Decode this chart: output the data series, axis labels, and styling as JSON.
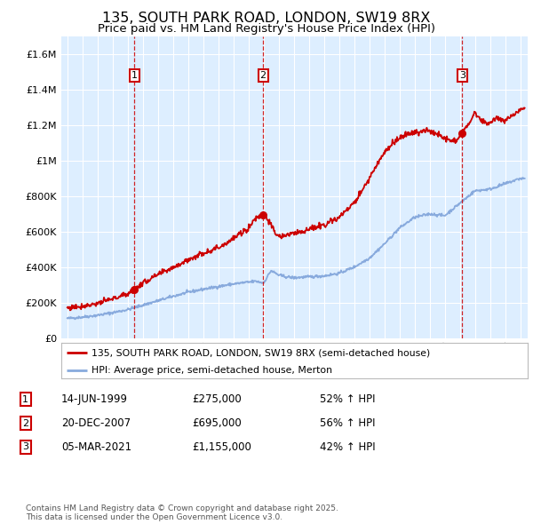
{
  "title": "135, SOUTH PARK ROAD, LONDON, SW19 8RX",
  "subtitle": "Price paid vs. HM Land Registry's House Price Index (HPI)",
  "title_fontsize": 11.5,
  "subtitle_fontsize": 9.5,
  "background_color": "#ffffff",
  "plot_bg_color": "#ddeeff",
  "grid_color": "#ffffff",
  "ylim": [
    0,
    1700000
  ],
  "yticks": [
    0,
    200000,
    400000,
    600000,
    800000,
    1000000,
    1200000,
    1400000,
    1600000
  ],
  "ytick_labels": [
    "£0",
    "£200K",
    "£400K",
    "£600K",
    "£800K",
    "£1M",
    "£1.2M",
    "£1.4M",
    "£1.6M"
  ],
  "xlim_start": 1994.6,
  "xlim_end": 2025.5,
  "xticks": [
    1995,
    1996,
    1997,
    1998,
    1999,
    2000,
    2001,
    2002,
    2003,
    2004,
    2005,
    2006,
    2007,
    2008,
    2009,
    2010,
    2011,
    2012,
    2013,
    2014,
    2015,
    2016,
    2017,
    2018,
    2019,
    2020,
    2021,
    2022,
    2023,
    2024,
    2025
  ],
  "red_line_color": "#cc0000",
  "blue_line_color": "#88aadd",
  "vline_color": "#cc0000",
  "sale_points": [
    {
      "year": 1999.45,
      "value": 275000,
      "label": "1"
    },
    {
      "year": 2007.97,
      "value": 695000,
      "label": "2"
    },
    {
      "year": 2021.17,
      "value": 1155000,
      "label": "3"
    }
  ],
  "legend_red_label": "135, SOUTH PARK ROAD, LONDON, SW19 8RX (semi-detached house)",
  "legend_blue_label": "HPI: Average price, semi-detached house, Merton",
  "table_rows": [
    {
      "num": "1",
      "date": "14-JUN-1999",
      "price": "£275,000",
      "hpi": "52% ↑ HPI"
    },
    {
      "num": "2",
      "date": "20-DEC-2007",
      "price": "£695,000",
      "hpi": "56% ↑ HPI"
    },
    {
      "num": "3",
      "date": "05-MAR-2021",
      "price": "£1,155,000",
      "hpi": "42% ↑ HPI"
    }
  ],
  "footnote": "Contains HM Land Registry data © Crown copyright and database right 2025.\nThis data is licensed under the Open Government Licence v3.0.",
  "hpi_years": [
    1995,
    1996,
    1997,
    1998,
    1999,
    2000,
    2001,
    2002,
    2003,
    2004,
    2005,
    2006,
    2007,
    2007.5,
    2008,
    2008.5,
    2009,
    2009.5,
    2010,
    2011,
    2012,
    2013,
    2014,
    2015,
    2016,
    2017,
    2018,
    2019,
    2020,
    2021,
    2022,
    2023,
    2024,
    2025
  ],
  "hpi_vals": [
    110000,
    118000,
    128000,
    143000,
    160000,
    185000,
    210000,
    235000,
    258000,
    275000,
    290000,
    305000,
    315000,
    320000,
    310000,
    380000,
    355000,
    345000,
    340000,
    345000,
    350000,
    365000,
    400000,
    450000,
    530000,
    620000,
    680000,
    700000,
    690000,
    760000,
    830000,
    840000,
    870000,
    900000
  ],
  "prop_years": [
    1995,
    1996,
    1997,
    1998,
    1999.0,
    1999.45,
    1999.6,
    2000,
    2001,
    2002,
    2003,
    2004,
    2005,
    2006,
    2007.0,
    2007.5,
    2007.97,
    2008.2,
    2008.8,
    2009,
    2010,
    2011,
    2012,
    2013,
    2014,
    2015,
    2016,
    2017,
    2018,
    2019,
    2020,
    2020.5,
    2021.0,
    2021.17,
    2021.5,
    2022,
    2022.5,
    2023,
    2023.5,
    2024,
    2024.5,
    2025
  ],
  "prop_vals": [
    170000,
    180000,
    195000,
    220000,
    250000,
    275000,
    285000,
    310000,
    355000,
    400000,
    440000,
    480000,
    510000,
    560000,
    620000,
    680000,
    695000,
    680000,
    590000,
    570000,
    590000,
    610000,
    640000,
    680000,
    760000,
    900000,
    1050000,
    1130000,
    1160000,
    1170000,
    1130000,
    1110000,
    1130000,
    1155000,
    1200000,
    1270000,
    1220000,
    1210000,
    1250000,
    1220000,
    1250000,
    1290000
  ]
}
